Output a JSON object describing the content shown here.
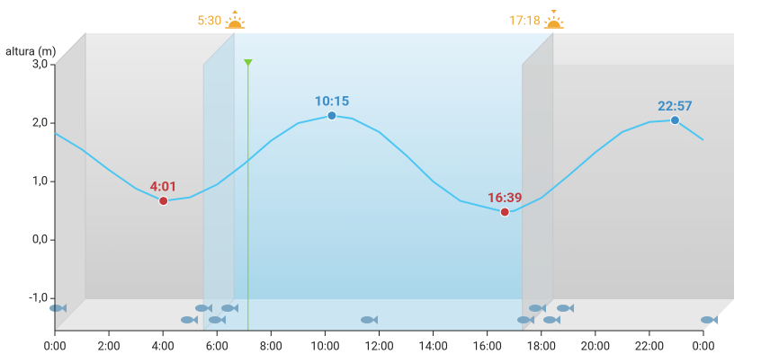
{
  "chart_data": {
    "type": "line",
    "y_label": "altura (m)",
    "xlim": [
      0,
      24
    ],
    "ylim": [
      -1.55,
      3
    ],
    "xticks": [
      {
        "value": 0,
        "label": "0:00"
      },
      {
        "value": 2,
        "label": "2:00"
      },
      {
        "value": 4,
        "label": "4:00"
      },
      {
        "value": 6,
        "label": "6:00"
      },
      {
        "value": 8,
        "label": "8:00"
      },
      {
        "value": 10,
        "label": "10:00"
      },
      {
        "value": 12,
        "label": "12:00"
      },
      {
        "value": 14,
        "label": "14:00"
      },
      {
        "value": 16,
        "label": "16:00"
      },
      {
        "value": 18,
        "label": "18:00"
      },
      {
        "value": 20,
        "label": "20:00"
      },
      {
        "value": 22,
        "label": "22:00"
      },
      {
        "value": 24,
        "label": "0:00"
      }
    ],
    "yticks": [
      {
        "value": 3,
        "label": "3,0"
      },
      {
        "value": 2,
        "label": "2,0"
      },
      {
        "value": 1,
        "label": "1,0"
      },
      {
        "value": 0,
        "label": "0,0"
      },
      {
        "value": -1,
        "label": "-1,0"
      }
    ],
    "series": [
      {
        "color": "#4cc6f2",
        "x": [
          0,
          1,
          2,
          3,
          4.0167,
          5,
          6,
          7,
          8,
          9,
          10.25,
          11,
          12,
          13,
          14,
          15,
          16.65,
          17,
          18,
          19,
          20,
          21,
          22,
          22.95,
          24
        ],
        "values": [
          1.83,
          1.55,
          1.2,
          0.88,
          0.67,
          0.73,
          0.95,
          1.3,
          1.7,
          2.0,
          2.13,
          2.08,
          1.85,
          1.45,
          1.0,
          0.67,
          0.48,
          0.5,
          0.72,
          1.1,
          1.5,
          1.85,
          2.02,
          2.05,
          1.71
        ]
      }
    ],
    "extremes": {
      "x": [
        4.0167,
        10.25,
        16.65,
        22.95
      ],
      "x_labels": [
        "4:01",
        "10:15",
        "16:39",
        "22:57"
      ],
      "values": [
        0.67,
        2.13,
        0.48,
        2.05
      ],
      "colors": [
        "#c4393c",
        "#3a8dc6",
        "#c4393c",
        "#3a8dc6"
      ]
    },
    "sunrise": {
      "x": 5.5,
      "label": "5:30"
    },
    "sunset": {
      "x": 17.3,
      "label": "17:18"
    },
    "sun_color": "#f0a830",
    "now": {
      "x": 7.15,
      "color": "#7ccf3a"
    }
  }
}
